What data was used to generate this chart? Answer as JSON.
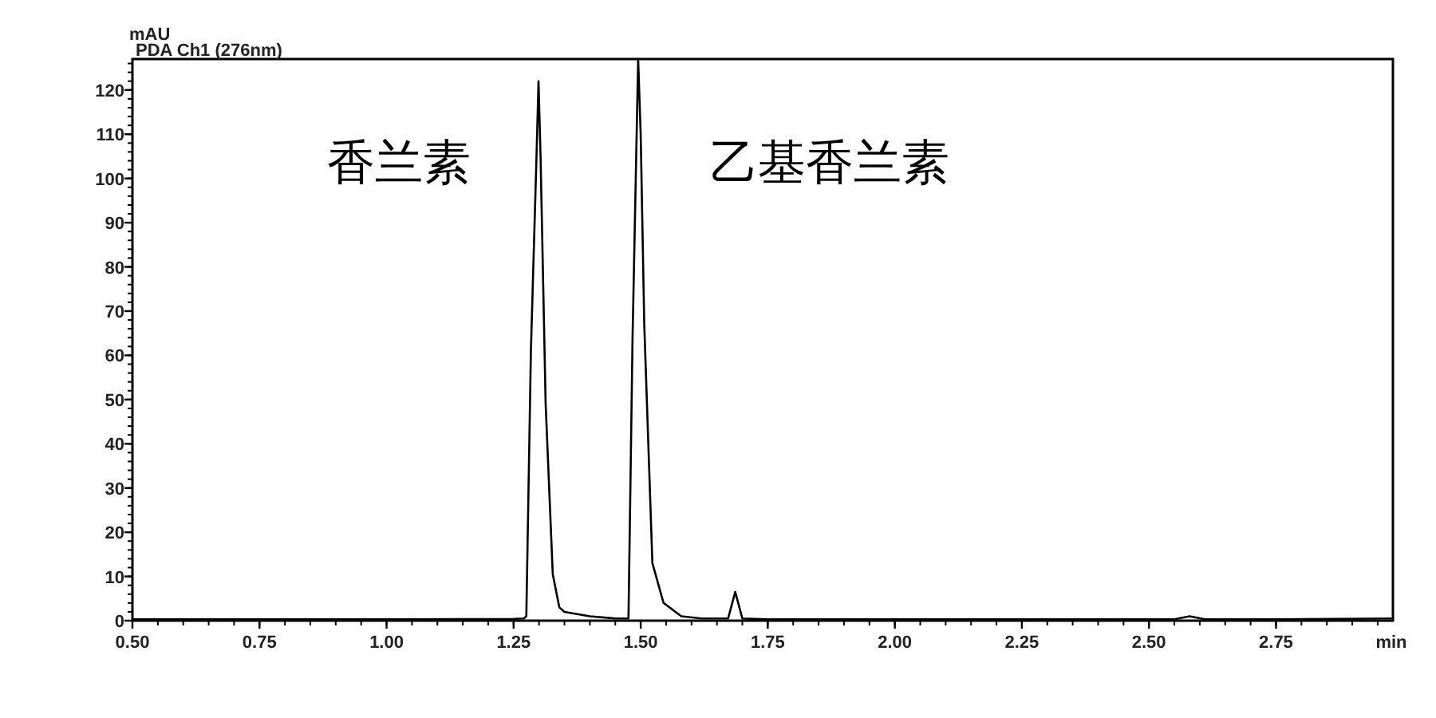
{
  "chart_data": {
    "type": "line",
    "subtitle": "PDA Ch1 (276nm)",
    "ylabel": "mAU",
    "xlabel": "min",
    "annotations": [
      "香兰素",
      "乙基香兰素"
    ],
    "series": [
      {
        "color": "#000000",
        "x": [
          0.5,
          0.75,
          1.0,
          1.25,
          1.27,
          1.275,
          1.284,
          1.295,
          1.299,
          1.303,
          1.313,
          1.327,
          1.34,
          1.35,
          1.4,
          1.45,
          1.476,
          1.484,
          1.495,
          1.5,
          1.507,
          1.523,
          1.545,
          1.58,
          1.62,
          1.672,
          1.686,
          1.7,
          1.75,
          2.0,
          2.25,
          2.55,
          2.58,
          2.61,
          2.75,
          2.98
        ],
        "values": [
          0.3,
          0.3,
          0.3,
          0.4,
          0.5,
          1,
          61,
          105,
          122,
          105,
          49,
          10.5,
          3,
          2,
          1,
          0.5,
          0.5,
          64,
          127,
          110,
          67,
          13,
          4,
          1,
          0.5,
          0.5,
          6.5,
          0.5,
          0.3,
          0.3,
          0.3,
          0.3,
          1,
          0.3,
          0.3,
          0.5
        ]
      }
    ],
    "xlim": [
      0.5,
      2.98
    ],
    "ylim": [
      0,
      127
    ],
    "xticks": [
      {
        "value": 0.5,
        "label": "0.50"
      },
      {
        "value": 0.75,
        "label": "0.75"
      },
      {
        "value": 1.0,
        "label": "1.00"
      },
      {
        "value": 1.25,
        "label": "1.25"
      },
      {
        "value": 1.5,
        "label": "1.50"
      },
      {
        "value": 1.75,
        "label": "1.75"
      },
      {
        "value": 2.0,
        "label": "2.00"
      },
      {
        "value": 2.25,
        "label": "2.25"
      },
      {
        "value": 2.5,
        "label": "2.50"
      },
      {
        "value": 2.75,
        "label": "2.75"
      }
    ],
    "yticks": [
      0,
      10,
      20,
      30,
      40,
      50,
      60,
      70,
      80,
      90,
      100,
      110,
      120
    ],
    "grid": false,
    "marker": "none",
    "line_style": "solid"
  }
}
